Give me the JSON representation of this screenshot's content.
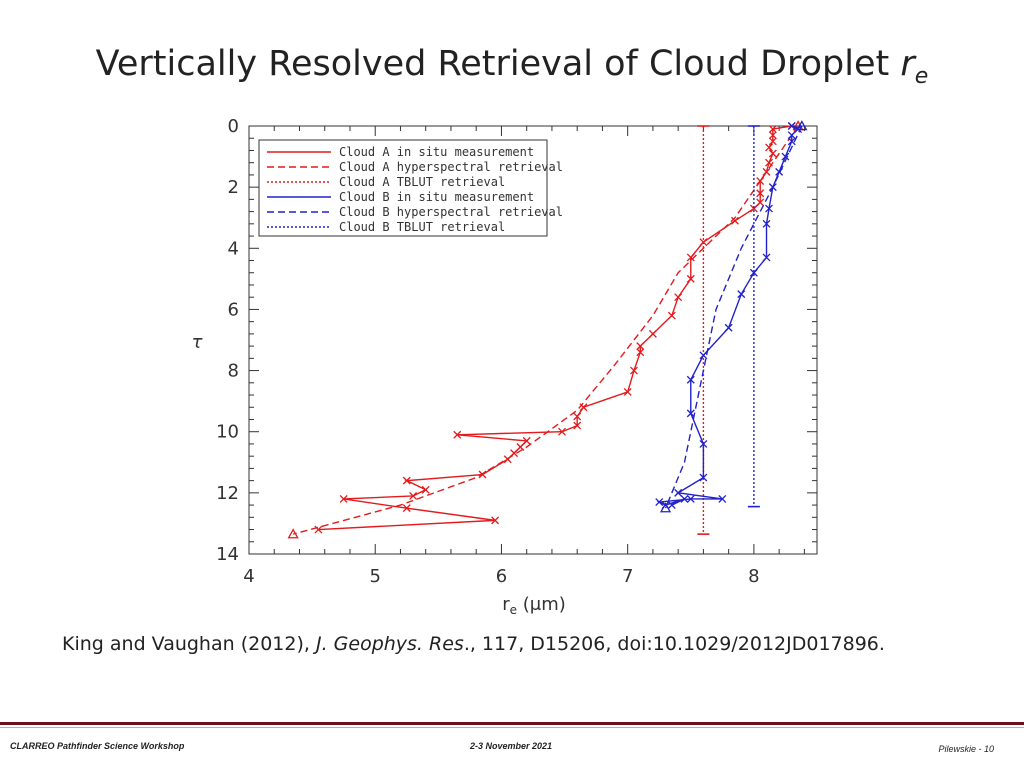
{
  "slide": {
    "title_main": "Vertically Resolved Retrieval of Cloud Droplet",
    "title_r": "r",
    "title_sub": "e",
    "citation_before": "King and Vaughan (2012), ",
    "citation_journal": "J. Geophys. Res",
    "citation_after": "., 117, D15206, doi:10.1029/2012JD017896.",
    "footer_left": "CLARREO Pathfinder Science Workshop",
    "footer_center": "2-3 November 2021",
    "footer_right": "Pilewskie  - 10"
  },
  "colors": {
    "red": "#e41a1c",
    "blue": "#2222cc",
    "axis": "#333333"
  },
  "chart_data": {
    "type": "line",
    "title": "",
    "xlabel_main": "r",
    "xlabel_sub": "e",
    "xlabel_unit": " (μm)",
    "ylabel": "τ",
    "xlim": [
      4,
      8.5
    ],
    "ylim": [
      14,
      0
    ],
    "xticks": [
      4,
      5,
      6,
      7,
      8
    ],
    "yticks": [
      0,
      2,
      4,
      6,
      8,
      10,
      12,
      14
    ],
    "grid": false,
    "legend_position": "top-left",
    "series": [
      {
        "name": "Cloud A in situ measurement",
        "color": "#e41a1c",
        "dash": "solid",
        "marker": "x",
        "points": [
          [
            8.3,
            0.0
          ],
          [
            8.15,
            0.1
          ],
          [
            8.15,
            0.3
          ],
          [
            8.15,
            0.5
          ],
          [
            8.12,
            0.7
          ],
          [
            8.15,
            0.9
          ],
          [
            8.12,
            1.2
          ],
          [
            8.1,
            1.5
          ],
          [
            8.05,
            1.8
          ],
          [
            8.05,
            2.2
          ],
          [
            8.05,
            2.5
          ],
          [
            8.0,
            2.7
          ],
          [
            7.85,
            3.1
          ],
          [
            7.6,
            3.8
          ],
          [
            7.5,
            4.3
          ],
          [
            7.5,
            5.0
          ],
          [
            7.4,
            5.6
          ],
          [
            7.35,
            6.2
          ],
          [
            7.2,
            6.8
          ],
          [
            7.1,
            7.2
          ],
          [
            7.1,
            7.4
          ],
          [
            7.05,
            8.0
          ],
          [
            7.0,
            8.7
          ],
          [
            6.65,
            9.2
          ],
          [
            6.6,
            9.5
          ],
          [
            6.6,
            9.8
          ],
          [
            6.48,
            10.0
          ],
          [
            5.65,
            10.1
          ],
          [
            6.2,
            10.3
          ],
          [
            6.15,
            10.5
          ],
          [
            6.1,
            10.7
          ],
          [
            6.05,
            10.9
          ],
          [
            5.85,
            11.4
          ],
          [
            5.25,
            11.6
          ],
          [
            5.4,
            11.9
          ],
          [
            5.3,
            12.1
          ],
          [
            4.75,
            12.2
          ],
          [
            5.25,
            12.5
          ],
          [
            5.95,
            12.9
          ],
          [
            4.55,
            13.2
          ]
        ]
      },
      {
        "name": "Cloud A hyperspectral retrieval",
        "color": "#e41a1c",
        "dash": "dashed",
        "marker": "triangle-end",
        "points": [
          [
            8.35,
            0.0
          ],
          [
            8.1,
            1.5
          ],
          [
            7.85,
            3.0
          ],
          [
            7.4,
            4.8
          ],
          [
            7.2,
            6.2
          ],
          [
            6.9,
            7.8
          ],
          [
            6.6,
            9.3
          ],
          [
            6.2,
            10.5
          ],
          [
            5.8,
            11.5
          ],
          [
            5.2,
            12.4
          ],
          [
            4.35,
            13.35
          ]
        ]
      },
      {
        "name": "Cloud A TBLUT retrieval",
        "color": "#e41a1c",
        "dash": "dotted",
        "marker": "none",
        "points": [
          [
            7.6,
            0.0
          ],
          [
            7.6,
            13.35
          ]
        ]
      },
      {
        "name": "Cloud B in situ measurement",
        "color": "#2222cc",
        "dash": "solid",
        "marker": "x",
        "points": [
          [
            8.3,
            0.0
          ],
          [
            8.35,
            0.1
          ],
          [
            8.3,
            0.3
          ],
          [
            8.3,
            0.5
          ],
          [
            8.25,
            1.0
          ],
          [
            8.2,
            1.5
          ],
          [
            8.15,
            2.0
          ],
          [
            8.12,
            2.7
          ],
          [
            8.1,
            3.2
          ],
          [
            8.1,
            4.3
          ],
          [
            8.0,
            4.8
          ],
          [
            7.9,
            5.5
          ],
          [
            7.8,
            6.6
          ],
          [
            7.6,
            7.5
          ],
          [
            7.5,
            8.3
          ],
          [
            7.5,
            9.4
          ],
          [
            7.6,
            10.4
          ],
          [
            7.6,
            11.5
          ],
          [
            7.4,
            12.0
          ],
          [
            7.75,
            12.2
          ],
          [
            7.5,
            12.2
          ],
          [
            7.25,
            12.3
          ],
          [
            7.3,
            12.4
          ],
          [
            7.45,
            12.2
          ],
          [
            7.35,
            12.4
          ]
        ]
      },
      {
        "name": "Cloud B hyperspectral retrieval",
        "color": "#2222cc",
        "dash": "dashed",
        "marker": "triangle-end",
        "points": [
          [
            8.38,
            0.0
          ],
          [
            8.15,
            2.0
          ],
          [
            7.9,
            4.0
          ],
          [
            7.7,
            6.0
          ],
          [
            7.55,
            9.0
          ],
          [
            7.45,
            11.0
          ],
          [
            7.3,
            12.5
          ]
        ]
      },
      {
        "name": "Cloud B TBLUT retrieval",
        "color": "#2222cc",
        "dash": "dotted",
        "marker": "none",
        "points": [
          [
            8.0,
            0.0
          ],
          [
            8.0,
            12.45
          ]
        ]
      }
    ]
  }
}
